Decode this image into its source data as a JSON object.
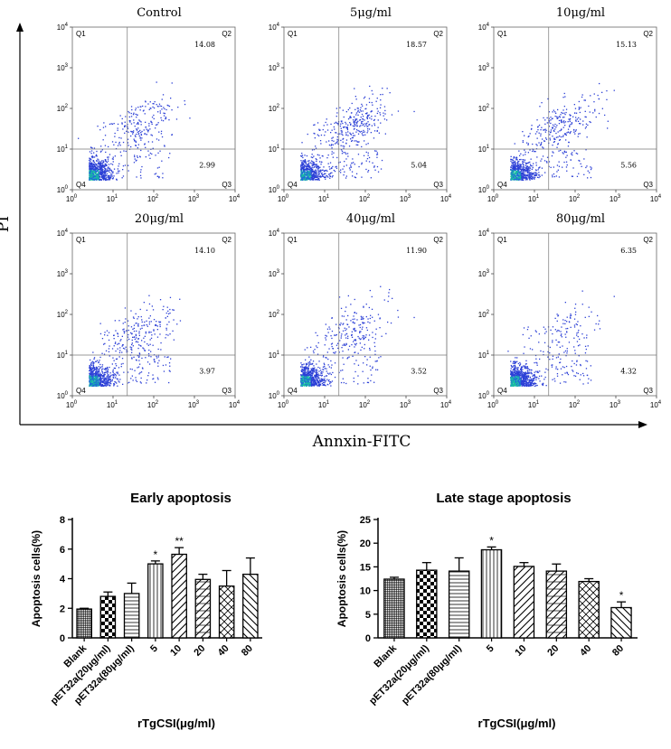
{
  "chart_data": [
    {
      "type": "scatter",
      "name": "flow-cytometry-panels",
      "y_axis_label": "PI",
      "x_axis_label": "Annxin-FITC",
      "quadrant_labels": [
        "Q1",
        "Q2",
        "Q3",
        "Q4"
      ],
      "tick_labels": [
        "10",
        "0",
        "1",
        "2",
        "3",
        "4"
      ],
      "xlim_log10": [
        0,
        4
      ],
      "ylim_log10": [
        0,
        4
      ],
      "panels": [
        {
          "title": "Control",
          "q2": "14.08",
          "q3": "2.99"
        },
        {
          "title": "5μg/ml",
          "q2": "18.57",
          "q3": "5.04"
        },
        {
          "title": "10μg/ml",
          "q2": "15.13",
          "q3": "5.56"
        },
        {
          "title": "20μg/ml",
          "q2": "14.10",
          "q3": "3.97"
        },
        {
          "title": "40μg/ml",
          "q2": "11.90",
          "q3": "3.52"
        },
        {
          "title": "80μg/ml",
          "q2": "6.35",
          "q3": "4.32"
        }
      ]
    },
    {
      "type": "bar",
      "title": "Early apoptosis",
      "ylabel": "Apoptosis cells(%)",
      "xlabel": "rTgCSI(μg/ml)",
      "ylim": [
        0,
        8
      ],
      "yticks": [
        "0",
        "2",
        "4",
        "6",
        "8"
      ],
      "categories": [
        "Blank",
        "pET32a(20μg/ml)",
        "pET32a(80μg/ml)",
        "5",
        "10",
        "20",
        "40",
        "80"
      ],
      "values": [
        1.95,
        2.8,
        3.0,
        5.0,
        5.65,
        3.95,
        3.5,
        4.3
      ],
      "errors": [
        0.05,
        0.3,
        0.7,
        0.2,
        0.45,
        0.35,
        1.05,
        1.1
      ],
      "significance": [
        "",
        "",
        "",
        "*",
        "**",
        "",
        "",
        ""
      ]
    },
    {
      "type": "bar",
      "title": "Late stage apoptosis",
      "ylabel": "Apoptosis cells(%)",
      "xlabel": "rTgCSI(μg/ml)",
      "ylim": [
        0,
        25
      ],
      "yticks": [
        "0",
        "5",
        "10",
        "15",
        "20",
        "25"
      ],
      "categories": [
        "Blank",
        "pET32a(20μg/ml)",
        "pET32a(80μg/ml)",
        "5",
        "10",
        "20",
        "40",
        "80"
      ],
      "values": [
        12.4,
        14.3,
        14.1,
        18.6,
        15.1,
        14.1,
        11.9,
        6.4
      ],
      "errors": [
        0.4,
        1.6,
        2.8,
        0.6,
        0.8,
        1.5,
        0.6,
        1.2
      ],
      "significance": [
        "",
        "",
        "",
        "*",
        "",
        "",
        "",
        "*"
      ]
    }
  ]
}
